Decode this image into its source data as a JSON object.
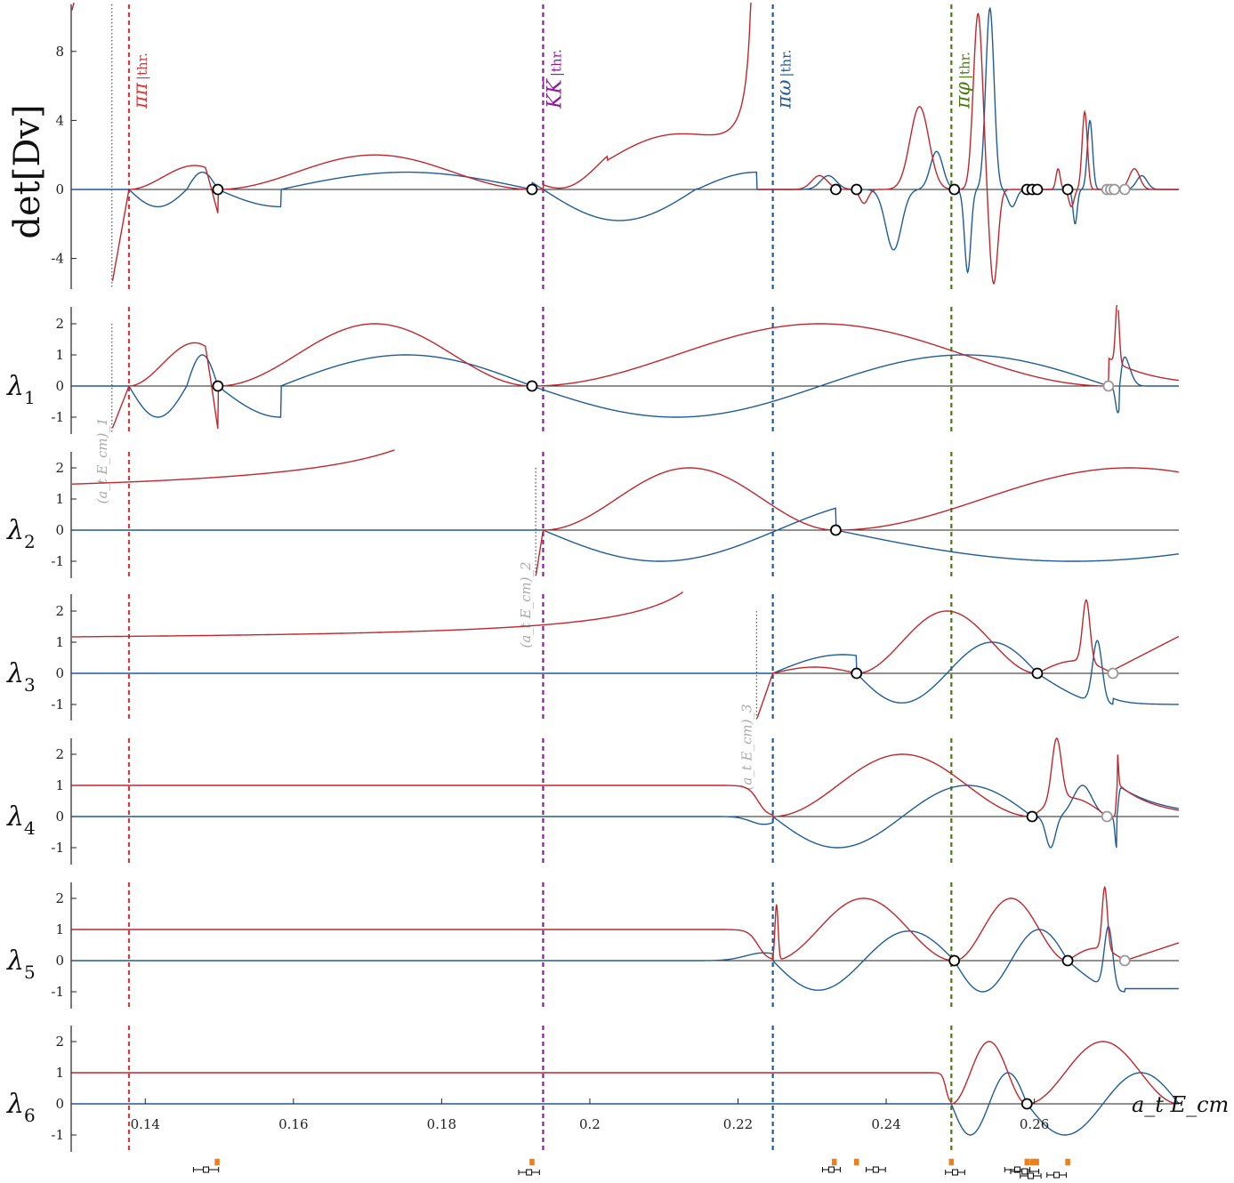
{
  "chart_data": {
    "type": "line",
    "xlabel": "a_t E_cm",
    "xlim": [
      0.13,
      0.2795
    ],
    "x_ticks": [
      0.14,
      0.16,
      0.18,
      0.2,
      0.22,
      0.24,
      0.26
    ],
    "x_tick_labels": [
      "0.14",
      "0.16",
      "0.18",
      "0.2",
      "0.22",
      "0.24",
      "0.26"
    ],
    "colors": {
      "red": "#c0272d",
      "blue": "#1f5c99",
      "purple": "#8b1d9c",
      "green": "#4a7a10",
      "gray": "#999999",
      "orange": "#f07f18"
    },
    "thresholds": [
      {
        "label_main": "ππ",
        "label_sub": "thr.",
        "x": 0.1378,
        "color": "#d8393b"
      },
      {
        "label_main": "KK̄",
        "label_sub": "thr.",
        "x": 0.1937,
        "color": "#8b1d9c"
      },
      {
        "label_main": "πω",
        "label_sub": "thr.",
        "x": 0.2247,
        "color": "#1f5c99"
      },
      {
        "label_main": "πφ",
        "label_sub": "thr.",
        "x": 0.2488,
        "color": "#4a7a10"
      }
    ],
    "panels": [
      {
        "ylabel_main": "det[Dv]",
        "ylabel_sub": "",
        "ylim": [
          -5.6,
          10.5
        ],
        "y_ticks": [
          -4,
          0,
          4,
          8
        ],
        "y_tick_labels": [
          "-4",
          "0",
          "4",
          "8"
        ],
        "ref_line": {
          "x": 0.1355,
          "label": ""
        },
        "zeros": [
          0.1498,
          0.1922,
          0.2332,
          0.236,
          0.2492,
          0.259,
          0.2597,
          0.2604,
          0.2645,
          0.2698,
          0.2703,
          0.2708,
          0.2722
        ],
        "gray_zeros": [
          0.2698,
          0.2703,
          0.2708,
          0.2722
        ]
      },
      {
        "ylabel_main": "λ",
        "ylabel_sub": "1",
        "ylim": [
          -1.5,
          2.5
        ],
        "y_ticks": [
          -1,
          0,
          1,
          2
        ],
        "y_tick_labels": [
          "-1",
          "0",
          "1",
          "2"
        ],
        "ref_line": {
          "x": 0.1355,
          "label": "(a_t E_cm)_1"
        },
        "zeros": [
          0.1498,
          0.1922,
          0.27
        ],
        "gray_zeros": [
          0.27
        ]
      },
      {
        "ylabel_main": "λ",
        "ylabel_sub": "2",
        "ylim": [
          -1.5,
          2.5
        ],
        "y_ticks": [
          -1,
          0,
          1,
          2
        ],
        "y_tick_labels": [
          "-1",
          "0",
          "1",
          "2"
        ],
        "ref_line": {
          "x": 0.1927,
          "label": "(a_t E_cm)_2"
        },
        "zeros": [
          0.2332
        ],
        "gray_zeros": []
      },
      {
        "ylabel_main": "λ",
        "ylabel_sub": "3",
        "ylim": [
          -1.5,
          2.5
        ],
        "y_ticks": [
          -1,
          0,
          1,
          2
        ],
        "y_tick_labels": [
          "-1",
          "0",
          "1",
          "2"
        ],
        "ref_line": {
          "x": 0.2225,
          "label": "(a_t E_cm)_3"
        },
        "zeros": [
          0.236,
          0.2604,
          0.2706
        ],
        "gray_zeros": [
          0.2706
        ]
      },
      {
        "ylabel_main": "λ",
        "ylabel_sub": "4",
        "ylim": [
          -1.5,
          2.5
        ],
        "y_ticks": [
          -1,
          0,
          1,
          2
        ],
        "y_tick_labels": [
          "-1",
          "0",
          "1",
          "2"
        ],
        "ref_line": null,
        "zeros": [
          0.2597,
          0.2698
        ],
        "gray_zeros": [
          0.2698
        ]
      },
      {
        "ylabel_main": "λ",
        "ylabel_sub": "5",
        "ylim": [
          -1.5,
          2.5
        ],
        "y_ticks": [
          -1,
          0,
          1,
          2
        ],
        "y_tick_labels": [
          "-1",
          "0",
          "1",
          "2"
        ],
        "ref_line": null,
        "zeros": [
          0.2492,
          0.2645,
          0.2722
        ],
        "gray_zeros": [
          0.2722
        ]
      },
      {
        "ylabel_main": "λ",
        "ylabel_sub": "6",
        "ylim": [
          -1.5,
          2.5
        ],
        "y_ticks": [
          -1,
          0,
          1,
          2
        ],
        "y_tick_labels": [
          "-1",
          "0",
          "1",
          "2"
        ],
        "ref_line": null,
        "zeros": [
          0.259
        ],
        "gray_zeros": []
      }
    ],
    "lattice_levels": [
      {
        "x": 0.1482,
        "err": 0.0017,
        "orange_x": 0.1497
      },
      {
        "x": 0.1918,
        "err": 0.0014,
        "orange_x": 0.1922
      },
      {
        "x": 0.2326,
        "err": 0.0012,
        "orange_x": 0.233
      },
      {
        "x": 0.2386,
        "err": 0.0013,
        "orange_x": 0.236
      },
      {
        "x": 0.2493,
        "err": 0.0013,
        "orange_x": 0.2488
      },
      {
        "x": 0.2577,
        "err": 0.0017,
        "orange_x": 0.259
      },
      {
        "x": 0.2587,
        "err": 0.0019,
        "orange_x": 0.2597
      },
      {
        "x": 0.2595,
        "err": 0.0014,
        "orange_x": 0.2603
      },
      {
        "x": 0.263,
        "err": 0.0013,
        "orange_x": 0.2645
      }
    ]
  }
}
